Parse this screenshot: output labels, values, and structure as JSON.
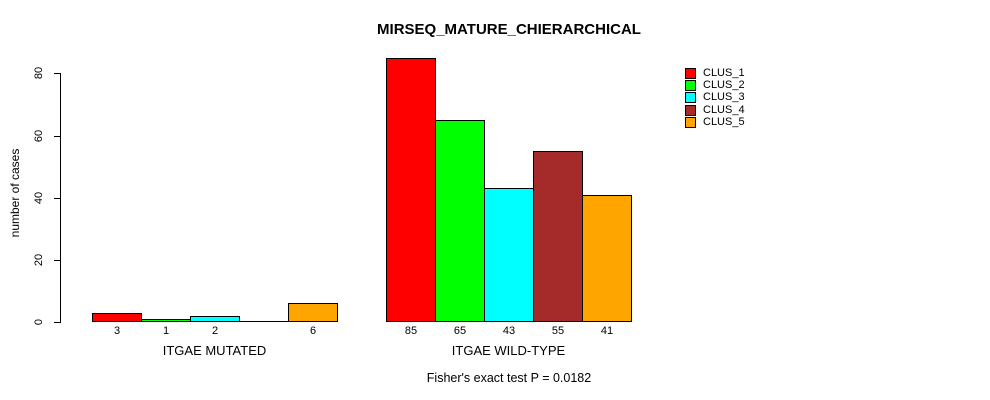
{
  "chart_data": {
    "type": "bar",
    "title": "MIRSEQ_MATURE_CHIERARCHICAL",
    "ylabel": "number of cases",
    "xlabel": "",
    "categories": [
      "ITGAE MUTATED",
      "ITGAE WILD-TYPE"
    ],
    "series": [
      {
        "name": "CLUS_1",
        "color": "#FF0000",
        "values": [
          3,
          85
        ]
      },
      {
        "name": "CLUS_2",
        "color": "#00FF00",
        "values": [
          1,
          65
        ]
      },
      {
        "name": "CLUS_3",
        "color": "#00FFFF",
        "values": [
          2,
          43
        ]
      },
      {
        "name": "CLUS_4",
        "color": "#A52A2A",
        "values": [
          0,
          55
        ]
      },
      {
        "name": "CLUS_5",
        "color": "#FFA500",
        "values": [
          6,
          41
        ]
      }
    ],
    "bar_value_labels": true,
    "yticks": [
      0,
      20,
      40,
      60,
      80
    ],
    "ylim": [
      0,
      85
    ],
    "grid": false,
    "legend_position": "top-right",
    "annotation": "Fisher's exact test P = 0.0182"
  }
}
